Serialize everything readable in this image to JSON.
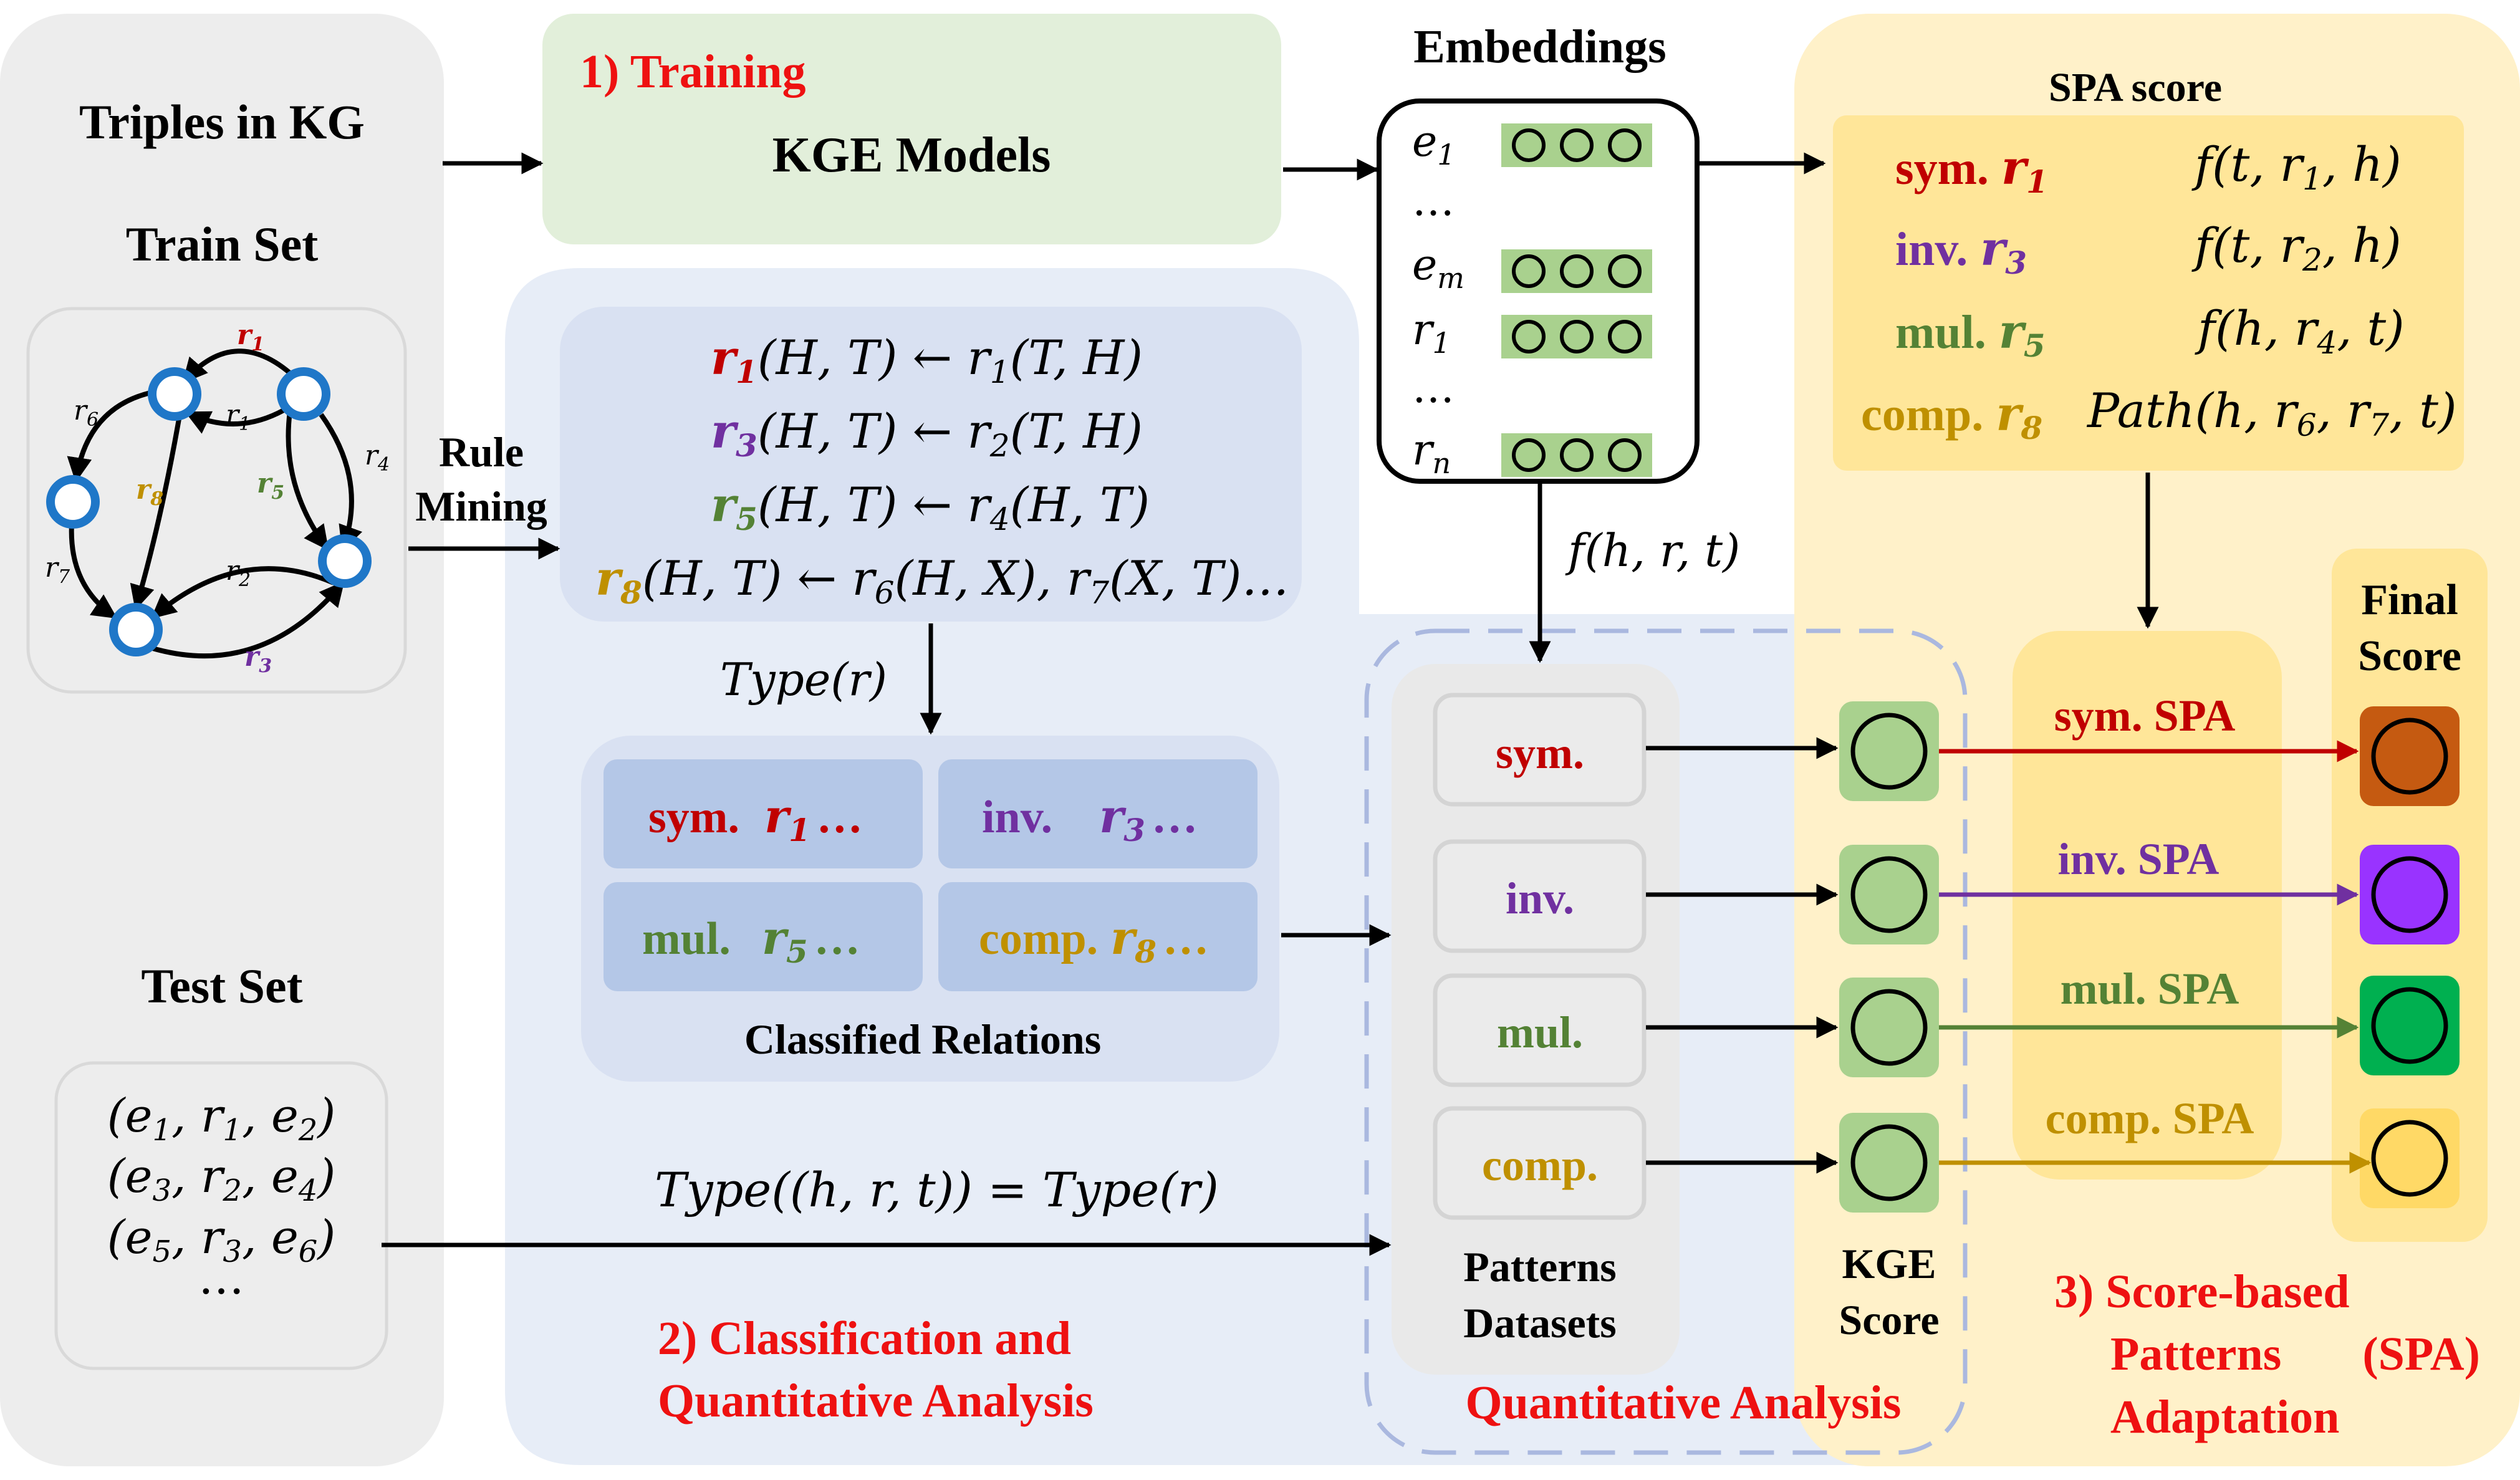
{
  "colors": {
    "red": "#c00000",
    "purple": "#7030a0",
    "green": "#548235",
    "gold": "#bf9000",
    "title_red": "#ee1111"
  },
  "left_panel": {
    "title": "Triples in KG",
    "train_label": "Train Set",
    "graph_edge_labels": [
      "r1",
      "r1",
      "r4",
      "r5",
      "r2",
      "r3",
      "r6",
      "r7",
      "r8"
    ],
    "test_label": "Test Set",
    "test_triples": [
      "(e1, r1, e2)",
      "(e3, r2, e4)",
      "(e5, r3, e6)",
      "…"
    ]
  },
  "training": {
    "title": "1) Training",
    "model": "KGE Models"
  },
  "embeddings": {
    "title": "Embeddings",
    "rows": [
      "e1",
      "…",
      "em",
      "r1",
      "…",
      "rn"
    ],
    "score_fn": "f(h, r, t)"
  },
  "rule_mining": {
    "label": "Rule Mining",
    "rules": [
      {
        "head": "r1",
        "body": "(H, T)  ← r1(T, H)"
      },
      {
        "head": "r3",
        "body": "(H, T)  ← r2(T, H)"
      },
      {
        "head": "r5",
        "body": "(H, T) ← r4(H, T)"
      },
      {
        "head": "r8",
        "body": "(H, T) ← r6(H, X), r7(X, T)…"
      }
    ],
    "type_label": "Type(r)"
  },
  "classified": {
    "title": "Classified Relations",
    "cells": [
      {
        "type": "sym.",
        "rel": "r1",
        "rest": "…"
      },
      {
        "type": "inv.",
        "rel": "r3",
        "rest": "…"
      },
      {
        "type": "mul.",
        "rel": "r5",
        "rest": "…"
      },
      {
        "type": "comp.",
        "rel": "r8",
        "rest": "…"
      }
    ]
  },
  "test_type_label": "Type((h, r, t)) = Type(r)",
  "classification_title": [
    "2) Classification and",
    "Quantitative Analysis"
  ],
  "patterns": {
    "items": [
      "sym.",
      "inv.",
      "mul.",
      "comp."
    ],
    "label": [
      "Patterns",
      "Datasets"
    ],
    "quant_title": "Quantitative Analysis"
  },
  "kge_score": [
    "KGE",
    "Score"
  ],
  "spa_score": {
    "title": "SPA score",
    "rows": [
      {
        "type": "sym.",
        "rel": "r1",
        "fn": "f(t, r1, h)"
      },
      {
        "type": "inv.",
        "rel": "r3",
        "fn": "f(t, r2, h)"
      },
      {
        "type": "mul.",
        "rel": "r5",
        "fn": "f(h, r4, t)"
      },
      {
        "type": "comp.",
        "rel": "r8",
        "fn": "Path(h, r6, r7, t)"
      }
    ]
  },
  "spa_labels": [
    "sym. SPA",
    "inv. SPA",
    "mul. SPA",
    "comp. SPA"
  ],
  "final_score": [
    "Final",
    "Score"
  ],
  "final_colors": [
    "#c55a11",
    "#9933ff",
    "#00b050",
    "#ffd966"
  ],
  "adaptation_title": [
    "3) Score-based",
    "Patterns      (SPA)",
    "Adaptation"
  ]
}
